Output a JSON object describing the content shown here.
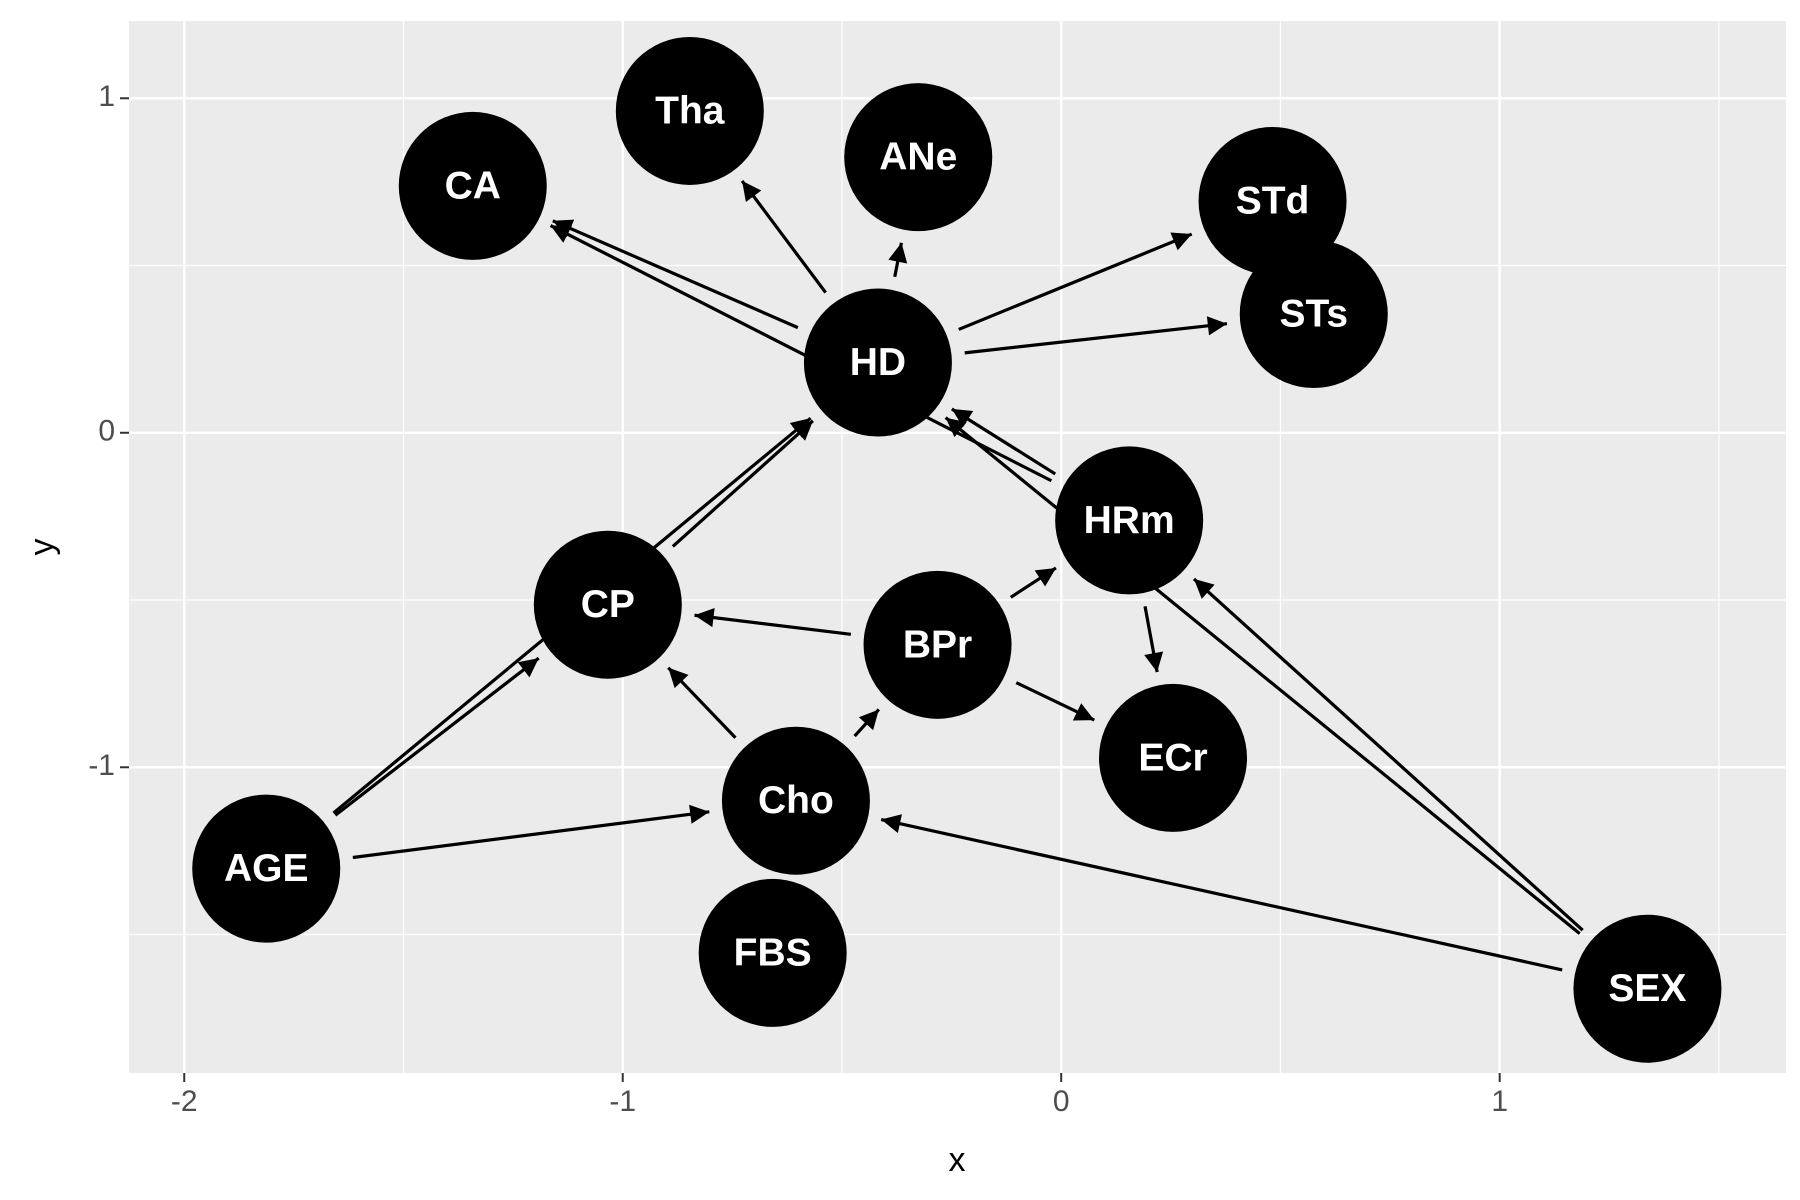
{
  "chart_data": {
    "type": "network",
    "xlabel": "x",
    "ylabel": "y",
    "xlim": [
      -2.126,
      1.653
    ],
    "ylim": [
      -1.914,
      1.231
    ],
    "xticks": [
      -2,
      -1,
      0,
      1
    ],
    "yticks": [
      -1,
      0,
      1
    ],
    "grid": true,
    "node_color": "#000000",
    "edge_color": "#000000",
    "nodes": [
      {
        "label": "AGE",
        "x": -1.813,
        "y": -1.303
      },
      {
        "label": "CP",
        "x": -1.034,
        "y": -0.514
      },
      {
        "label": "HD",
        "x": -0.418,
        "y": 0.21
      },
      {
        "label": "CA",
        "x": -1.342,
        "y": 0.738
      },
      {
        "label": "Tha",
        "x": -0.847,
        "y": 0.962
      },
      {
        "label": "ANe",
        "x": -0.326,
        "y": 0.824
      },
      {
        "label": "STd",
        "x": 0.482,
        "y": 0.693
      },
      {
        "label": "STs",
        "x": 0.576,
        "y": 0.355
      },
      {
        "label": "HRm",
        "x": 0.155,
        "y": -0.262
      },
      {
        "label": "BPr",
        "x": -0.282,
        "y": -0.634
      },
      {
        "label": "ECr",
        "x": 0.255,
        "y": -0.972
      },
      {
        "label": "Cho",
        "x": -0.605,
        "y": -1.1
      },
      {
        "label": "FBS",
        "x": -0.658,
        "y": -1.555
      },
      {
        "label": "SEX",
        "x": 1.337,
        "y": -1.662
      }
    ],
    "edges": [
      {
        "from": "AGE",
        "to": "CP"
      },
      {
        "from": "AGE",
        "to": "HD"
      },
      {
        "from": "AGE",
        "to": "Cho"
      },
      {
        "from": "CP",
        "to": "HD"
      },
      {
        "from": "HD",
        "to": "CA"
      },
      {
        "from": "HD",
        "to": "Tha"
      },
      {
        "from": "HD",
        "to": "ANe"
      },
      {
        "from": "HD",
        "to": "STd"
      },
      {
        "from": "HD",
        "to": "STs"
      },
      {
        "from": "HRm",
        "to": "CA"
      },
      {
        "from": "HRm",
        "to": "HD"
      },
      {
        "from": "HRm",
        "to": "ECr"
      },
      {
        "from": "BPr",
        "to": "CP"
      },
      {
        "from": "BPr",
        "to": "HRm"
      },
      {
        "from": "BPr",
        "to": "ECr"
      },
      {
        "from": "Cho",
        "to": "CP"
      },
      {
        "from": "Cho",
        "to": "BPr"
      },
      {
        "from": "SEX",
        "to": "HRm"
      },
      {
        "from": "SEX",
        "to": "HD"
      },
      {
        "from": "SEX",
        "to": "Cho"
      }
    ]
  }
}
